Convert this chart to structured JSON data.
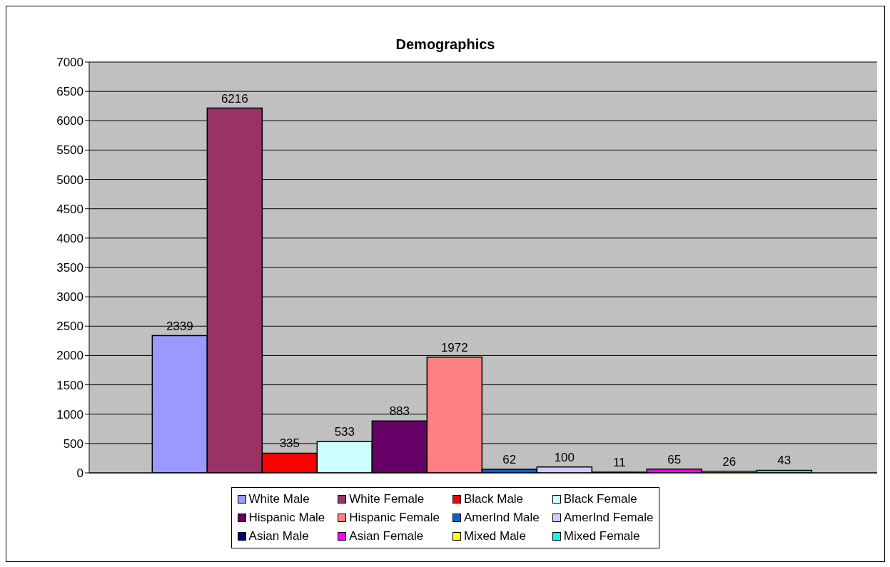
{
  "chart_data": {
    "type": "bar",
    "title": "Demographics",
    "categories": [
      null
    ],
    "series": [
      {
        "name": "White Male",
        "color": "#9999ff",
        "values": [
          2339
        ]
      },
      {
        "name": "White Female",
        "color": "#993366",
        "values": [
          6216
        ]
      },
      {
        "name": "Black Male",
        "color": "#ff0000",
        "values": [
          335
        ]
      },
      {
        "name": "Black Female",
        "color": "#ccffff",
        "values": [
          533
        ]
      },
      {
        "name": "Hispanic Male",
        "color": "#660066",
        "values": [
          883
        ]
      },
      {
        "name": "Hispanic Female",
        "color": "#ff8080",
        "values": [
          1972
        ]
      },
      {
        "name": "AmerInd Male",
        "color": "#0066cc",
        "values": [
          62
        ]
      },
      {
        "name": "AmerInd Female",
        "color": "#ccccff",
        "values": [
          100
        ]
      },
      {
        "name": "Asian Male",
        "color": "#000080",
        "values": [
          11
        ]
      },
      {
        "name": "Asian Female",
        "color": "#ff00ff",
        "values": [
          65
        ]
      },
      {
        "name": "Mixed Male",
        "color": "#ffff00",
        "values": [
          26
        ]
      },
      {
        "name": "Mixed Female",
        "color": "#00ffff",
        "values": [
          43
        ]
      }
    ],
    "ylim": [
      0,
      7000
    ],
    "yticks": [
      0,
      500,
      1000,
      1500,
      2000,
      2500,
      3000,
      3500,
      4000,
      4500,
      5000,
      5500,
      6000,
      6500,
      7000
    ],
    "grid": "y",
    "legend": "bottom",
    "data_labels": true
  }
}
